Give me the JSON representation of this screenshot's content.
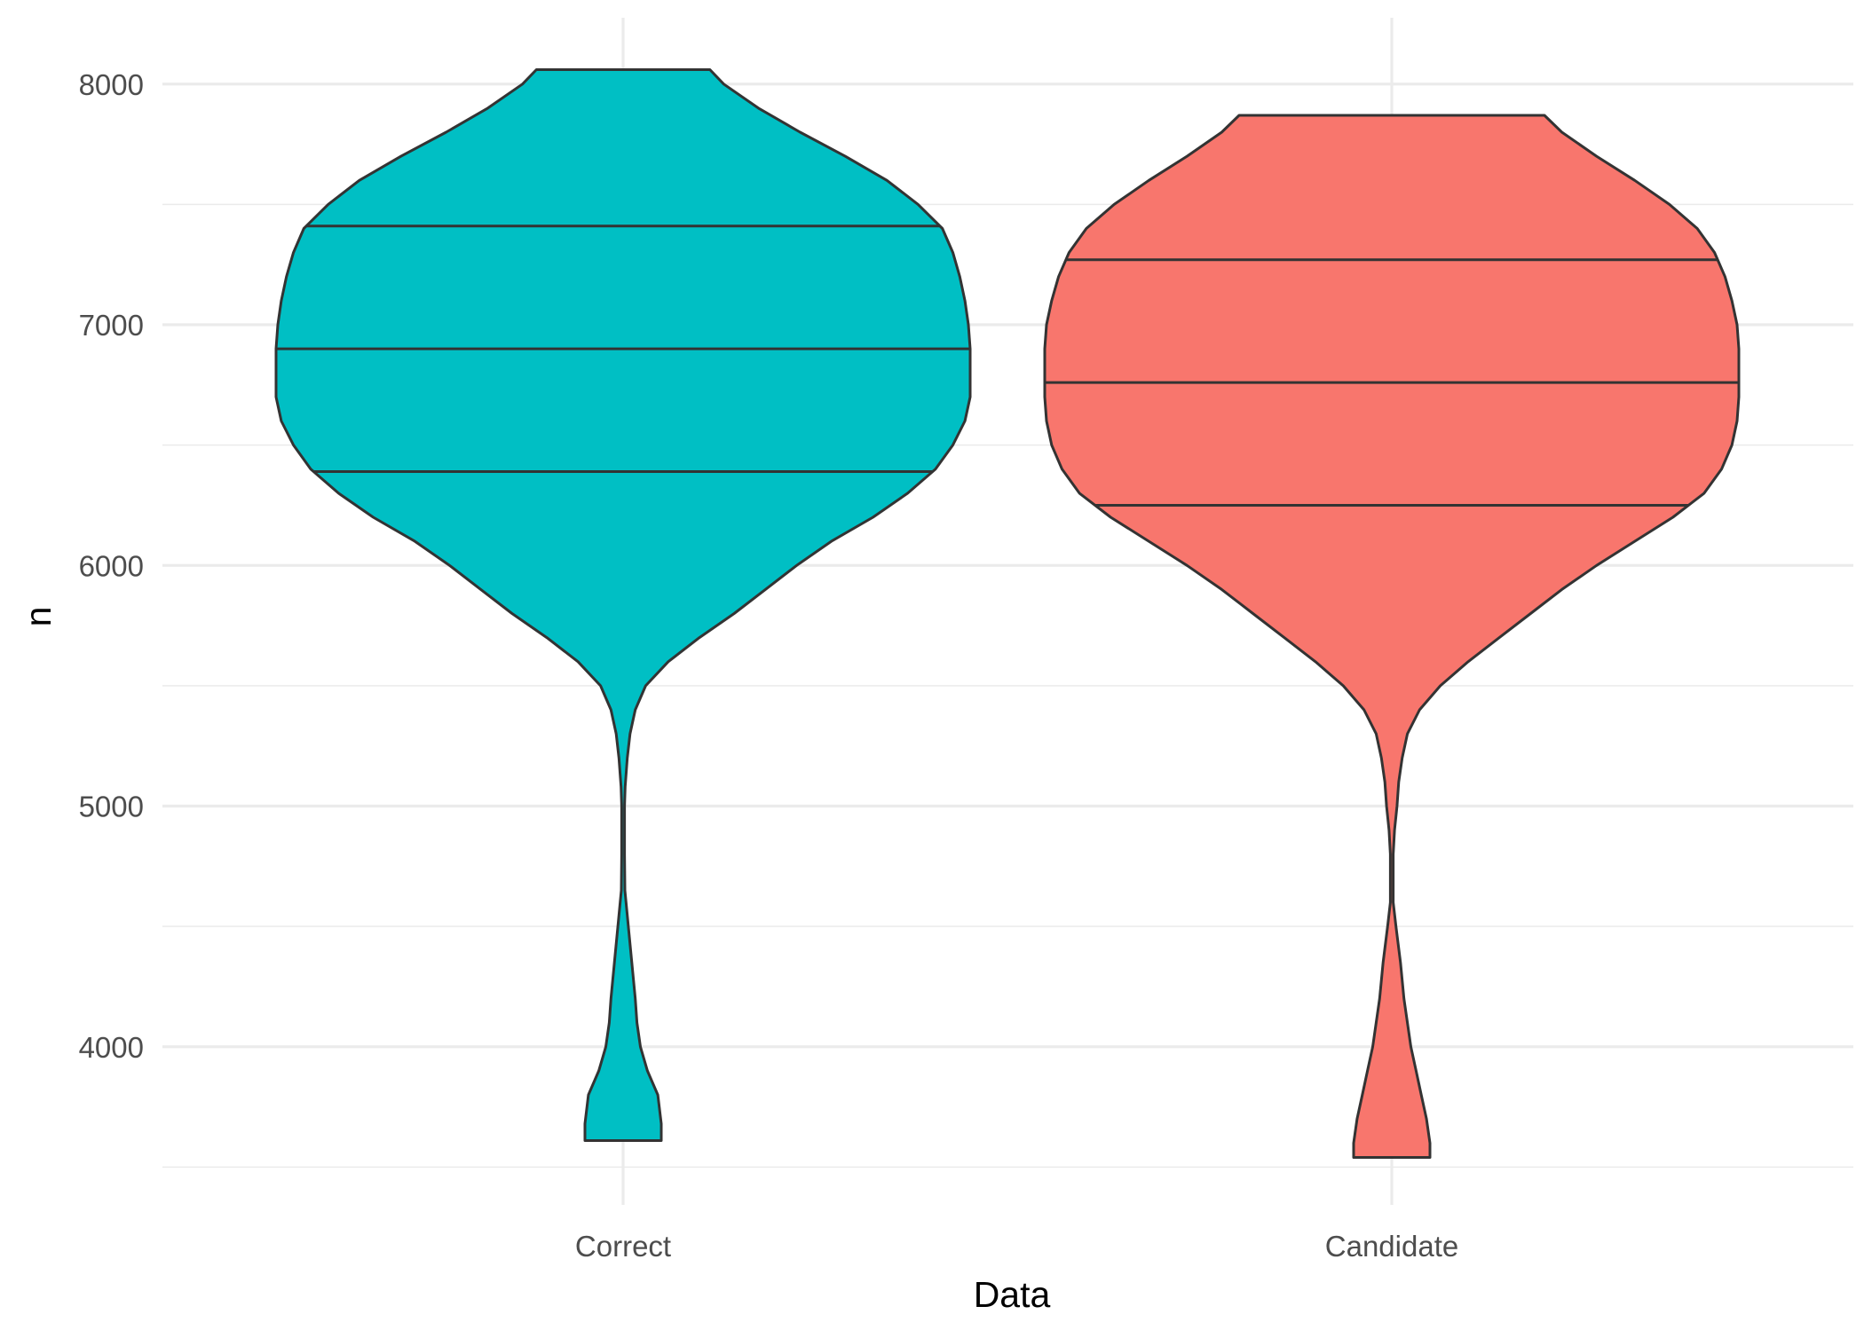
{
  "chart_data": {
    "type": "violin",
    "xlabel": "Data",
    "ylabel": "n",
    "ylim": [
      3480,
      8120
    ],
    "y_major_ticks": [
      4000,
      5000,
      6000,
      7000,
      8000
    ],
    "y_minor_ticks": [
      3500,
      4500,
      5500,
      6500,
      7500
    ],
    "categories": [
      "Correct",
      "Candidate"
    ],
    "grid": true,
    "legend": "none",
    "draw_quantiles": [
      0.25,
      0.5,
      0.75
    ],
    "series": [
      {
        "category": "Correct",
        "color": "#00BFC4",
        "min": 3610,
        "max": 8060,
        "q25": 6390,
        "median": 6900,
        "q75": 7410,
        "density": [
          [
            3610,
            0.11
          ],
          [
            3680,
            0.11
          ],
          [
            3800,
            0.1
          ],
          [
            3900,
            0.07
          ],
          [
            4000,
            0.05
          ],
          [
            4100,
            0.04
          ],
          [
            4200,
            0.035
          ],
          [
            4350,
            0.025
          ],
          [
            4500,
            0.015
          ],
          [
            4650,
            0.005
          ],
          [
            4800,
            0.004
          ],
          [
            5000,
            0.004
          ],
          [
            5080,
            0.006
          ],
          [
            5200,
            0.012
          ],
          [
            5300,
            0.02
          ],
          [
            5400,
            0.035
          ],
          [
            5500,
            0.065
          ],
          [
            5600,
            0.13
          ],
          [
            5700,
            0.22
          ],
          [
            5800,
            0.32
          ],
          [
            5900,
            0.41
          ],
          [
            6000,
            0.5
          ],
          [
            6100,
            0.6
          ],
          [
            6200,
            0.72
          ],
          [
            6300,
            0.82
          ],
          [
            6400,
            0.9
          ],
          [
            6500,
            0.95
          ],
          [
            6600,
            0.985
          ],
          [
            6700,
            1.0
          ],
          [
            6800,
            1.0
          ],
          [
            6900,
            1.0
          ],
          [
            7000,
            0.995
          ],
          [
            7100,
            0.985
          ],
          [
            7200,
            0.97
          ],
          [
            7300,
            0.95
          ],
          [
            7400,
            0.92
          ],
          [
            7500,
            0.85
          ],
          [
            7600,
            0.76
          ],
          [
            7700,
            0.64
          ],
          [
            7800,
            0.51
          ],
          [
            7900,
            0.39
          ],
          [
            8000,
            0.29
          ],
          [
            8060,
            0.25
          ]
        ]
      },
      {
        "category": "Candidate",
        "color": "#F8766D",
        "min": 3540,
        "max": 7870,
        "q25": 6250,
        "median": 6760,
        "q75": 7270,
        "density": [
          [
            3540,
            0.11
          ],
          [
            3600,
            0.11
          ],
          [
            3700,
            0.1
          ],
          [
            3800,
            0.085
          ],
          [
            3900,
            0.07
          ],
          [
            4000,
            0.055
          ],
          [
            4100,
            0.045
          ],
          [
            4200,
            0.035
          ],
          [
            4350,
            0.025
          ],
          [
            4500,
            0.012
          ],
          [
            4600,
            0.004
          ],
          [
            4800,
            0.004
          ],
          [
            4900,
            0.008
          ],
          [
            5000,
            0.015
          ],
          [
            5100,
            0.02
          ],
          [
            5200,
            0.03
          ],
          [
            5300,
            0.045
          ],
          [
            5400,
            0.08
          ],
          [
            5500,
            0.14
          ],
          [
            5600,
            0.22
          ],
          [
            5700,
            0.31
          ],
          [
            5800,
            0.4
          ],
          [
            5900,
            0.49
          ],
          [
            6000,
            0.59
          ],
          [
            6100,
            0.7
          ],
          [
            6200,
            0.81
          ],
          [
            6300,
            0.9
          ],
          [
            6400,
            0.95
          ],
          [
            6500,
            0.98
          ],
          [
            6600,
            0.995
          ],
          [
            6700,
            1.0
          ],
          [
            6800,
            1.0
          ],
          [
            6900,
            1.0
          ],
          [
            7000,
            0.995
          ],
          [
            7100,
            0.98
          ],
          [
            7200,
            0.96
          ],
          [
            7300,
            0.93
          ],
          [
            7400,
            0.88
          ],
          [
            7500,
            0.8
          ],
          [
            7600,
            0.7
          ],
          [
            7700,
            0.59
          ],
          [
            7800,
            0.49
          ],
          [
            7870,
            0.44
          ]
        ]
      }
    ]
  }
}
